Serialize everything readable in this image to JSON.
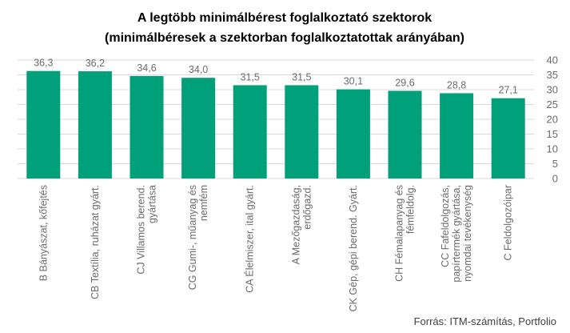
{
  "chart_data": {
    "type": "bar",
    "title_line1": "A legtöbb minimálbérest foglalkoztató szektorok",
    "title_line2": "(minimálbéresek a szektorban foglalkoztatottak arányában)",
    "categories": [
      [
        "B Bányászat, kőfejtés"
      ],
      [
        "CB Textília, ruházat gyárt."
      ],
      [
        "CJ Villamos berend.",
        "gyártása"
      ],
      [
        "CG Gumi-, műanyag és",
        "nemfém"
      ],
      [
        "CA Élelmiszer, ital  gyárt."
      ],
      [
        "A Mezőgazdaság,",
        "erdőgazd."
      ],
      [
        "CK Gép, gépi berend. Gyárt."
      ],
      [
        "CH Fémalapanyag és",
        "fémfeldolg."
      ],
      [
        "CC Fafeldolgozás,",
        "papírtermék gyártása,",
        "nyomdai tevékenység"
      ],
      [
        "C Feldolgozóipar"
      ]
    ],
    "values": [
      36.3,
      36.2,
      34.6,
      34.0,
      31.5,
      31.5,
      30.1,
      29.6,
      28.8,
      27.1
    ],
    "value_labels": [
      "36,3",
      "36,2",
      "34,6",
      "34,0",
      "31,5",
      "31,5",
      "30,1",
      "29,6",
      "28,8",
      "27,1"
    ],
    "yticks": [
      0,
      5,
      10,
      15,
      20,
      25,
      30,
      35,
      40
    ],
    "ylim": [
      0,
      40
    ],
    "yaxis_position": "right",
    "grid": true,
    "bar_color": "#00a07a",
    "source": "Forrás: ITM-számítás, Portfolio"
  }
}
